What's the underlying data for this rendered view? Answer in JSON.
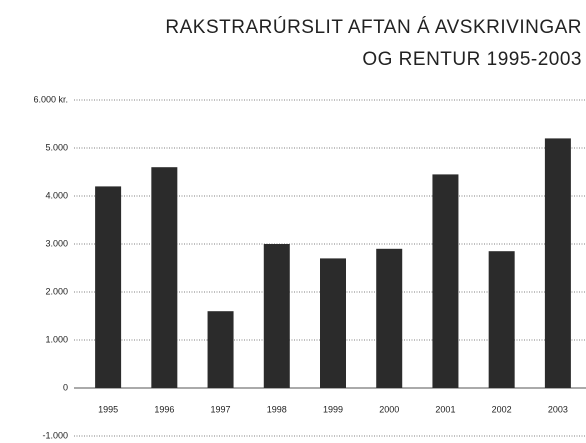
{
  "chart_data": {
    "type": "bar",
    "title_lines": [
      "RAKSTRARÚRSLIT AFTAN Á AVSKRIVINGAR",
      "OG RENTUR 1995-2003"
    ],
    "categories": [
      "1995",
      "1996",
      "1997",
      "1998",
      "1999",
      "2000",
      "2001",
      "2002",
      "2003"
    ],
    "values": [
      4200,
      4600,
      1600,
      3000,
      2700,
      2900,
      4450,
      2850,
      5200
    ],
    "color": "#2b2b2b",
    "ylim": [
      -1000,
      6000
    ],
    "yticks": [
      {
        "value": -1000,
        "label": "-1.000"
      },
      0,
      {
        "value": 1000,
        "label": "1.000"
      },
      {
        "value": 2000,
        "label": "2.000"
      },
      {
        "value": 3000,
        "label": "3.000"
      },
      {
        "value": 4000,
        "label": "4.000"
      },
      {
        "value": 5000,
        "label": "5.000"
      },
      {
        "value": 6000,
        "label": "6.000 kr."
      }
    ],
    "grid": true
  }
}
